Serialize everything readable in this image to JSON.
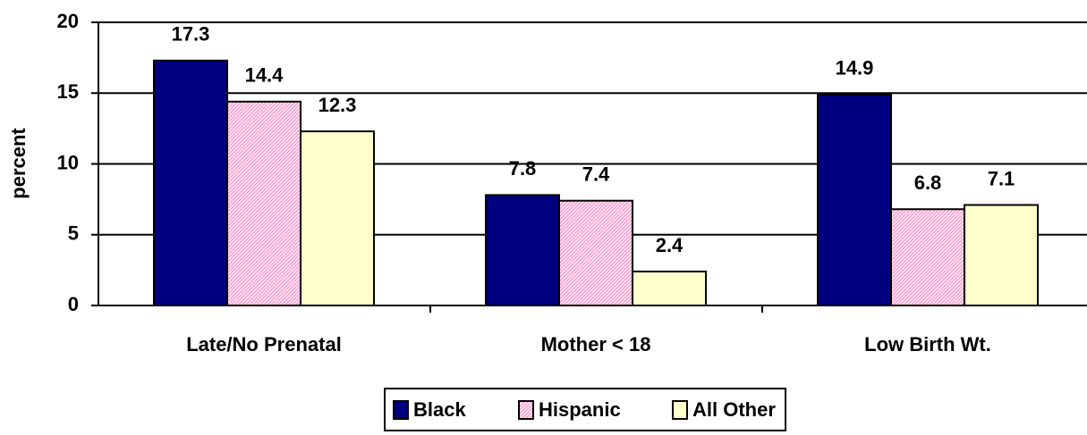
{
  "chart_data": {
    "type": "bar",
    "y_label": "percent",
    "categories": [
      "Late/No Prenatal",
      "Mother < 18",
      "Low Birth Wt."
    ],
    "series": [
      {
        "name": "Black",
        "color": "#000080",
        "values": [
          17.3,
          7.8,
          14.9
        ]
      },
      {
        "name": "Hispanic",
        "color": "#ff99cc",
        "values": [
          14.4,
          7.4,
          6.8
        ]
      },
      {
        "name": "All Other",
        "color": "#ffffcc",
        "values": [
          12.3,
          2.4,
          7.1
        ]
      }
    ],
    "ylim": [
      0,
      20
    ],
    "yticks": [
      0,
      5,
      10,
      15,
      20
    ],
    "grid": true,
    "legend": "bottom"
  }
}
